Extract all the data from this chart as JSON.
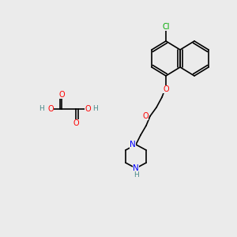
{
  "background_color": "#ebebeb",
  "figsize": [
    3.0,
    3.0
  ],
  "dpi": 100,
  "atom_colors": {
    "C": "#000000",
    "O": "#ff0000",
    "N": "#0000ff",
    "Cl": "#00aa00",
    "H": "#4a8a8a"
  },
  "bond_color": "#000000",
  "bond_width": 1.2
}
